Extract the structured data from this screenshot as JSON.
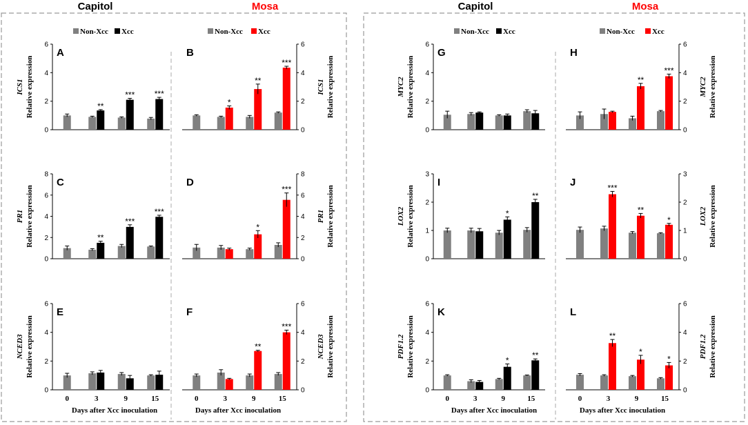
{
  "headers": {
    "left_capitol": "Capitol",
    "left_mosa": "Mosa",
    "right_capitol": "Capitol",
    "right_mosa": "Mosa"
  },
  "colors": {
    "control": "#808080",
    "capitol_xcc": "#000000",
    "mosa_xcc": "#ff0000",
    "mosa_header": "#ff0000",
    "capitol_header": "#000000"
  },
  "legend": {
    "control": "Non-Xcc",
    "treated": "Xcc"
  },
  "y_label_common": "Relative expression",
  "x_axis_label": "Days after Xcc inoculation",
  "chart_data": [
    {
      "panel": "A",
      "type": "bar",
      "gene": "ICS1",
      "cultivar": "Capitol",
      "categories": [
        "0",
        "3",
        "9",
        "15"
      ],
      "ylim": [
        0,
        6
      ],
      "yticks": [
        0,
        2,
        4,
        6
      ],
      "series": [
        {
          "name": "Non-Xcc",
          "values": [
            1.0,
            0.9,
            0.85,
            0.78
          ],
          "errors": [
            0.1,
            0.05,
            0.05,
            0.08
          ]
        },
        {
          "name": "Xcc",
          "values": [
            null,
            1.35,
            2.1,
            2.15
          ],
          "errors": [
            null,
            0.06,
            0.1,
            0.12
          ]
        }
      ],
      "significance": [
        "",
        "**",
        "***",
        "***"
      ]
    },
    {
      "panel": "B",
      "type": "bar",
      "gene": "ICS1",
      "cultivar": "Mosa",
      "categories": [
        "0",
        "3",
        "9",
        "15"
      ],
      "ylim": [
        0,
        6
      ],
      "yticks": [
        0,
        2,
        4,
        6
      ],
      "series": [
        {
          "name": "Non-Xcc",
          "values": [
            1.0,
            0.9,
            0.9,
            1.2
          ],
          "errors": [
            0.05,
            0.05,
            0.1,
            0.05
          ]
        },
        {
          "name": "Xcc",
          "values": [
            null,
            1.55,
            2.85,
            4.35
          ],
          "errors": [
            null,
            0.12,
            0.35,
            0.1
          ]
        }
      ],
      "significance": [
        "",
        "*",
        "**",
        "***"
      ]
    },
    {
      "panel": "C",
      "type": "bar",
      "gene": "PR1",
      "cultivar": "Capitol",
      "categories": [
        "0",
        "3",
        "9",
        "15"
      ],
      "ylim": [
        0,
        8
      ],
      "yticks": [
        0,
        2,
        4,
        6,
        8
      ],
      "series": [
        {
          "name": "Non-Xcc",
          "values": [
            1.0,
            0.85,
            1.2,
            1.15
          ],
          "errors": [
            0.2,
            0.1,
            0.15,
            0.05
          ]
        },
        {
          "name": "Xcc",
          "values": [
            null,
            1.5,
            3.0,
            3.95
          ],
          "errors": [
            null,
            0.15,
            0.2,
            0.15
          ]
        }
      ],
      "significance": [
        "",
        "**",
        "***",
        "***"
      ]
    },
    {
      "panel": "D",
      "type": "bar",
      "gene": "PR1",
      "cultivar": "Mosa",
      "categories": [
        "0",
        "3",
        "9",
        "15"
      ],
      "ylim": [
        0,
        8
      ],
      "yticks": [
        0,
        2,
        4,
        6,
        8
      ],
      "series": [
        {
          "name": "Non-Xcc",
          "values": [
            1.05,
            1.05,
            0.9,
            1.3
          ],
          "errors": [
            0.3,
            0.2,
            0.1,
            0.2
          ]
        },
        {
          "name": "Xcc",
          "values": [
            null,
            0.9,
            2.3,
            5.55
          ],
          "errors": [
            null,
            0.1,
            0.35,
            0.65
          ]
        }
      ],
      "significance": [
        "",
        "",
        "*",
        "***"
      ]
    },
    {
      "panel": "E",
      "type": "bar",
      "gene": "NCED3",
      "cultivar": "Capitol",
      "categories": [
        "0",
        "3",
        "9",
        "15"
      ],
      "ylim": [
        0,
        6
      ],
      "yticks": [
        0,
        2,
        4,
        6
      ],
      "series": [
        {
          "name": "Non-Xcc",
          "values": [
            1.0,
            1.15,
            1.1,
            1.0
          ],
          "errors": [
            0.15,
            0.1,
            0.1,
            0.05
          ]
        },
        {
          "name": "Xcc",
          "values": [
            null,
            1.2,
            0.8,
            1.05
          ],
          "errors": [
            null,
            0.15,
            0.2,
            0.25
          ]
        }
      ],
      "significance": [
        "",
        "",
        "",
        ""
      ]
    },
    {
      "panel": "F",
      "type": "bar",
      "gene": "NCED3",
      "cultivar": "Mosa",
      "categories": [
        "0",
        "3",
        "9",
        "15"
      ],
      "ylim": [
        0,
        6
      ],
      "yticks": [
        0,
        2,
        4,
        6
      ],
      "series": [
        {
          "name": "Non-Xcc",
          "values": [
            1.0,
            1.2,
            1.0,
            1.1
          ],
          "errors": [
            0.1,
            0.2,
            0.1,
            0.1
          ]
        },
        {
          "name": "Xcc",
          "values": [
            null,
            0.75,
            2.7,
            4.0
          ],
          "errors": [
            null,
            0.05,
            0.05,
            0.15
          ]
        }
      ],
      "significance": [
        "",
        "",
        "**",
        "***"
      ]
    },
    {
      "panel": "G",
      "type": "bar",
      "gene": "MYC2",
      "cultivar": "Capitol",
      "categories": [
        "0",
        "3",
        "9",
        "15"
      ],
      "ylim": [
        0,
        6
      ],
      "yticks": [
        0,
        2,
        4,
        6
      ],
      "series": [
        {
          "name": "Non-Xcc",
          "values": [
            1.05,
            1.1,
            1.0,
            1.3
          ],
          "errors": [
            0.25,
            0.1,
            0.05,
            0.1
          ]
        },
        {
          "name": "Xcc",
          "values": [
            null,
            1.2,
            1.0,
            1.15
          ],
          "errors": [
            null,
            0.05,
            0.1,
            0.2
          ]
        }
      ],
      "significance": [
        "",
        "",
        "",
        ""
      ]
    },
    {
      "panel": "H",
      "type": "bar",
      "gene": "MYC2",
      "cultivar": "Mosa",
      "categories": [
        "0",
        "3",
        "9",
        "15"
      ],
      "ylim": [
        0,
        6
      ],
      "yticks": [
        0,
        2,
        4,
        6
      ],
      "series": [
        {
          "name": "Non-Xcc",
          "values": [
            1.0,
            1.1,
            0.8,
            1.3
          ],
          "errors": [
            0.25,
            0.35,
            0.15,
            0.05
          ]
        },
        {
          "name": "Xcc",
          "values": [
            null,
            1.25,
            3.05,
            3.75
          ],
          "errors": [
            null,
            0.05,
            0.2,
            0.15
          ]
        }
      ],
      "significance": [
        "",
        "",
        "**",
        "***"
      ]
    },
    {
      "panel": "I",
      "type": "bar",
      "gene": "LOX2",
      "cultivar": "Capitol",
      "categories": [
        "0",
        "3",
        "9",
        "15"
      ],
      "ylim": [
        0,
        3
      ],
      "yticks": [
        0,
        1,
        2,
        3
      ],
      "series": [
        {
          "name": "Non-Xcc",
          "values": [
            1.0,
            1.0,
            0.92,
            1.02
          ],
          "errors": [
            0.08,
            0.08,
            0.08,
            0.08
          ]
        },
        {
          "name": "Xcc",
          "values": [
            null,
            0.97,
            1.38,
            2.0
          ],
          "errors": [
            null,
            0.1,
            0.1,
            0.1
          ]
        }
      ],
      "significance": [
        "",
        "",
        "*",
        "**"
      ]
    },
    {
      "panel": "J",
      "type": "bar",
      "gene": "LOX2",
      "cultivar": "Mosa",
      "categories": [
        "0",
        "3",
        "9",
        "15"
      ],
      "ylim": [
        0,
        3
      ],
      "yticks": [
        0,
        1,
        2,
        3
      ],
      "series": [
        {
          "name": "Non-Xcc",
          "values": [
            1.02,
            1.07,
            0.92,
            0.9
          ],
          "errors": [
            0.1,
            0.08,
            0.04,
            0.02
          ]
        },
        {
          "name": "Xcc",
          "values": [
            null,
            2.28,
            1.52,
            1.2
          ],
          "errors": [
            null,
            0.1,
            0.08,
            0.05
          ]
        }
      ],
      "significance": [
        "",
        "***",
        "**",
        "*"
      ]
    },
    {
      "panel": "K",
      "type": "bar",
      "gene": "PDF1.2",
      "cultivar": "Capitol",
      "categories": [
        "0",
        "3",
        "9",
        "15"
      ],
      "ylim": [
        0,
        6
      ],
      "yticks": [
        0,
        2,
        4,
        6
      ],
      "series": [
        {
          "name": "Non-Xcc",
          "values": [
            1.0,
            0.6,
            0.75,
            1.0
          ],
          "errors": [
            0.05,
            0.1,
            0.05,
            0.03
          ]
        },
        {
          "name": "Xcc",
          "values": [
            null,
            0.55,
            1.6,
            2.05
          ],
          "errors": [
            null,
            0.1,
            0.2,
            0.1
          ]
        }
      ],
      "significance": [
        "",
        "",
        "*",
        "**"
      ]
    },
    {
      "panel": "L",
      "type": "bar",
      "gene": "PDF1.2",
      "cultivar": "Mosa",
      "categories": [
        "0",
        "3",
        "9",
        "15"
      ],
      "ylim": [
        0,
        6
      ],
      "yticks": [
        0,
        2,
        4,
        6
      ],
      "series": [
        {
          "name": "Non-Xcc",
          "values": [
            1.05,
            1.0,
            0.95,
            0.8
          ],
          "errors": [
            0.08,
            0.05,
            0.05,
            0.05
          ]
        },
        {
          "name": "Xcc",
          "values": [
            null,
            3.25,
            2.1,
            1.7
          ],
          "errors": [
            null,
            0.25,
            0.3,
            0.2
          ]
        }
      ],
      "significance": [
        "",
        "**",
        "*",
        "*"
      ]
    }
  ]
}
